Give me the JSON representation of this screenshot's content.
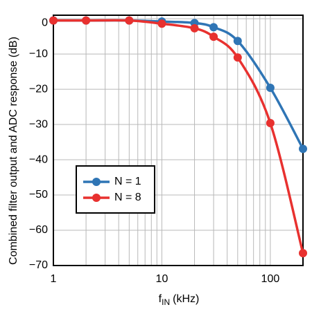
{
  "chart_data": {
    "type": "line",
    "ylabel": "Combined filter output and ADC response (dB)",
    "xlabel_symbol": "f",
    "xlabel_subscript": "IN",
    "xlabel_unit": "(kHz)",
    "x": [
      1,
      2,
      5,
      10,
      20,
      30,
      50,
      100,
      200
    ],
    "series": [
      {
        "name": "N = 1",
        "color": "#2f75b5",
        "values": [
          -0.5,
          -0.5,
          -0.5,
          -0.8,
          -1.2,
          -2.4,
          -6.3,
          -19.6,
          -36.9
        ]
      },
      {
        "name": "N = 8",
        "color": "#e8312f",
        "values": [
          -0.5,
          -0.5,
          -0.5,
          -1.4,
          -2.7,
          -5.1,
          -11,
          -29.6,
          -66.5
        ]
      }
    ],
    "xlog": true,
    "xlim": [
      1,
      200
    ],
    "xticks": [
      1,
      10,
      100
    ],
    "xminorticks": [
      2,
      3,
      4,
      5,
      6,
      7,
      8,
      9,
      20,
      30,
      40,
      50,
      60,
      70,
      80,
      90
    ],
    "ylim": [
      -70,
      1
    ],
    "yticks": [
      0,
      {
        "value": -10,
        "label": "−10"
      },
      {
        "value": -20,
        "label": "−20"
      },
      {
        "value": -30,
        "label": "−30"
      },
      {
        "value": -40,
        "label": "−40"
      },
      {
        "value": -50,
        "label": "−50"
      },
      {
        "value": -60,
        "label": "−60"
      },
      {
        "value": -70,
        "label": "−70"
      }
    ],
    "grid": true,
    "legend": "lower-left"
  }
}
